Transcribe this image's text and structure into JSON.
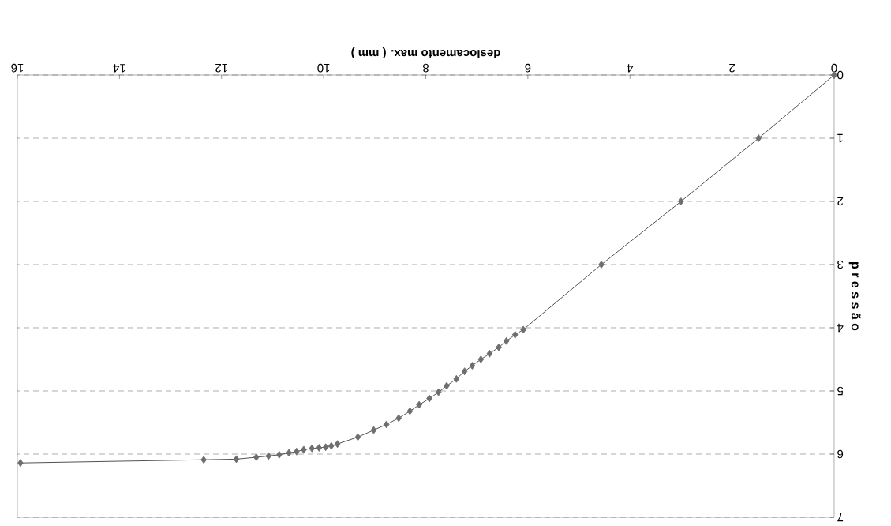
{
  "chart_data": {
    "type": "line",
    "xlabel": "deslocamento max. ( mm )",
    "ylabel": "p r e s s ã o",
    "series": [
      {
        "color": "#6e6e6e",
        "x": [
          0,
          1.48,
          3.0,
          4.56,
          6.09,
          6.25,
          6.42,
          6.57,
          6.75,
          6.92,
          7.09,
          7.24,
          7.4,
          7.59,
          7.75,
          7.93,
          8.13,
          8.31,
          8.53,
          8.77,
          9.02,
          9.33,
          9.73,
          9.85,
          9.96,
          10.09,
          10.23,
          10.39,
          10.53,
          10.68,
          10.87,
          11.08,
          11.32,
          11.71,
          12.35,
          15.94
        ],
        "values": [
          0,
          1.0,
          2.0,
          3.0,
          4.03,
          4.11,
          4.21,
          4.31,
          4.41,
          4.5,
          4.6,
          4.69,
          4.81,
          4.92,
          5.02,
          5.12,
          5.22,
          5.32,
          5.43,
          5.53,
          5.62,
          5.73,
          5.84,
          5.87,
          5.89,
          5.9,
          5.91,
          5.93,
          5.96,
          5.98,
          6.01,
          6.03,
          6.05,
          6.08,
          6.09,
          6.14
        ]
      }
    ],
    "xlim": [
      16,
      0
    ],
    "ylim": [
      7,
      0
    ],
    "xticks": [
      0,
      2,
      4,
      6,
      8,
      10,
      12,
      14,
      16
    ],
    "yticks": [
      0,
      1,
      2,
      3,
      4,
      5,
      6,
      7
    ],
    "grid": "y",
    "marker": "diamond",
    "line_style": "solid"
  }
}
